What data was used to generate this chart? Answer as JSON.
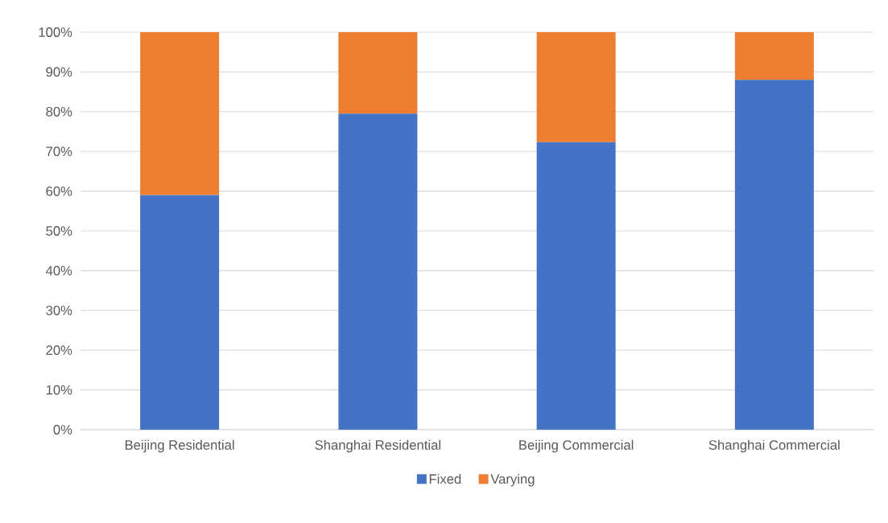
{
  "chart_data": {
    "type": "bar",
    "stacked": true,
    "categories": [
      "Beijing Residential",
      "Shanghai Residential",
      "Beijing Commercial",
      "Shanghai Commercial"
    ],
    "series": [
      {
        "name": "Fixed",
        "color": "#4472c4",
        "values": [
          59,
          79.5,
          72.3,
          88
        ]
      },
      {
        "name": "Varying",
        "color": "#ed7d31",
        "values": [
          41,
          20.5,
          27.7,
          12
        ]
      }
    ],
    "ylim": [
      0,
      100
    ],
    "yticks": [
      {
        "value": 0,
        "label": "0%"
      },
      {
        "value": 10,
        "label": "10%"
      },
      {
        "value": 20,
        "label": "20%"
      },
      {
        "value": 30,
        "label": "30%"
      },
      {
        "value": 40,
        "label": "40%"
      },
      {
        "value": 50,
        "label": "50%"
      },
      {
        "value": 60,
        "label": "60%"
      },
      {
        "value": 70,
        "label": "70%"
      },
      {
        "value": 80,
        "label": "80%"
      },
      {
        "value": 90,
        "label": "90%"
      },
      {
        "value": 100,
        "label": "100%"
      }
    ],
    "grid": "y",
    "legend": "bottom"
  }
}
